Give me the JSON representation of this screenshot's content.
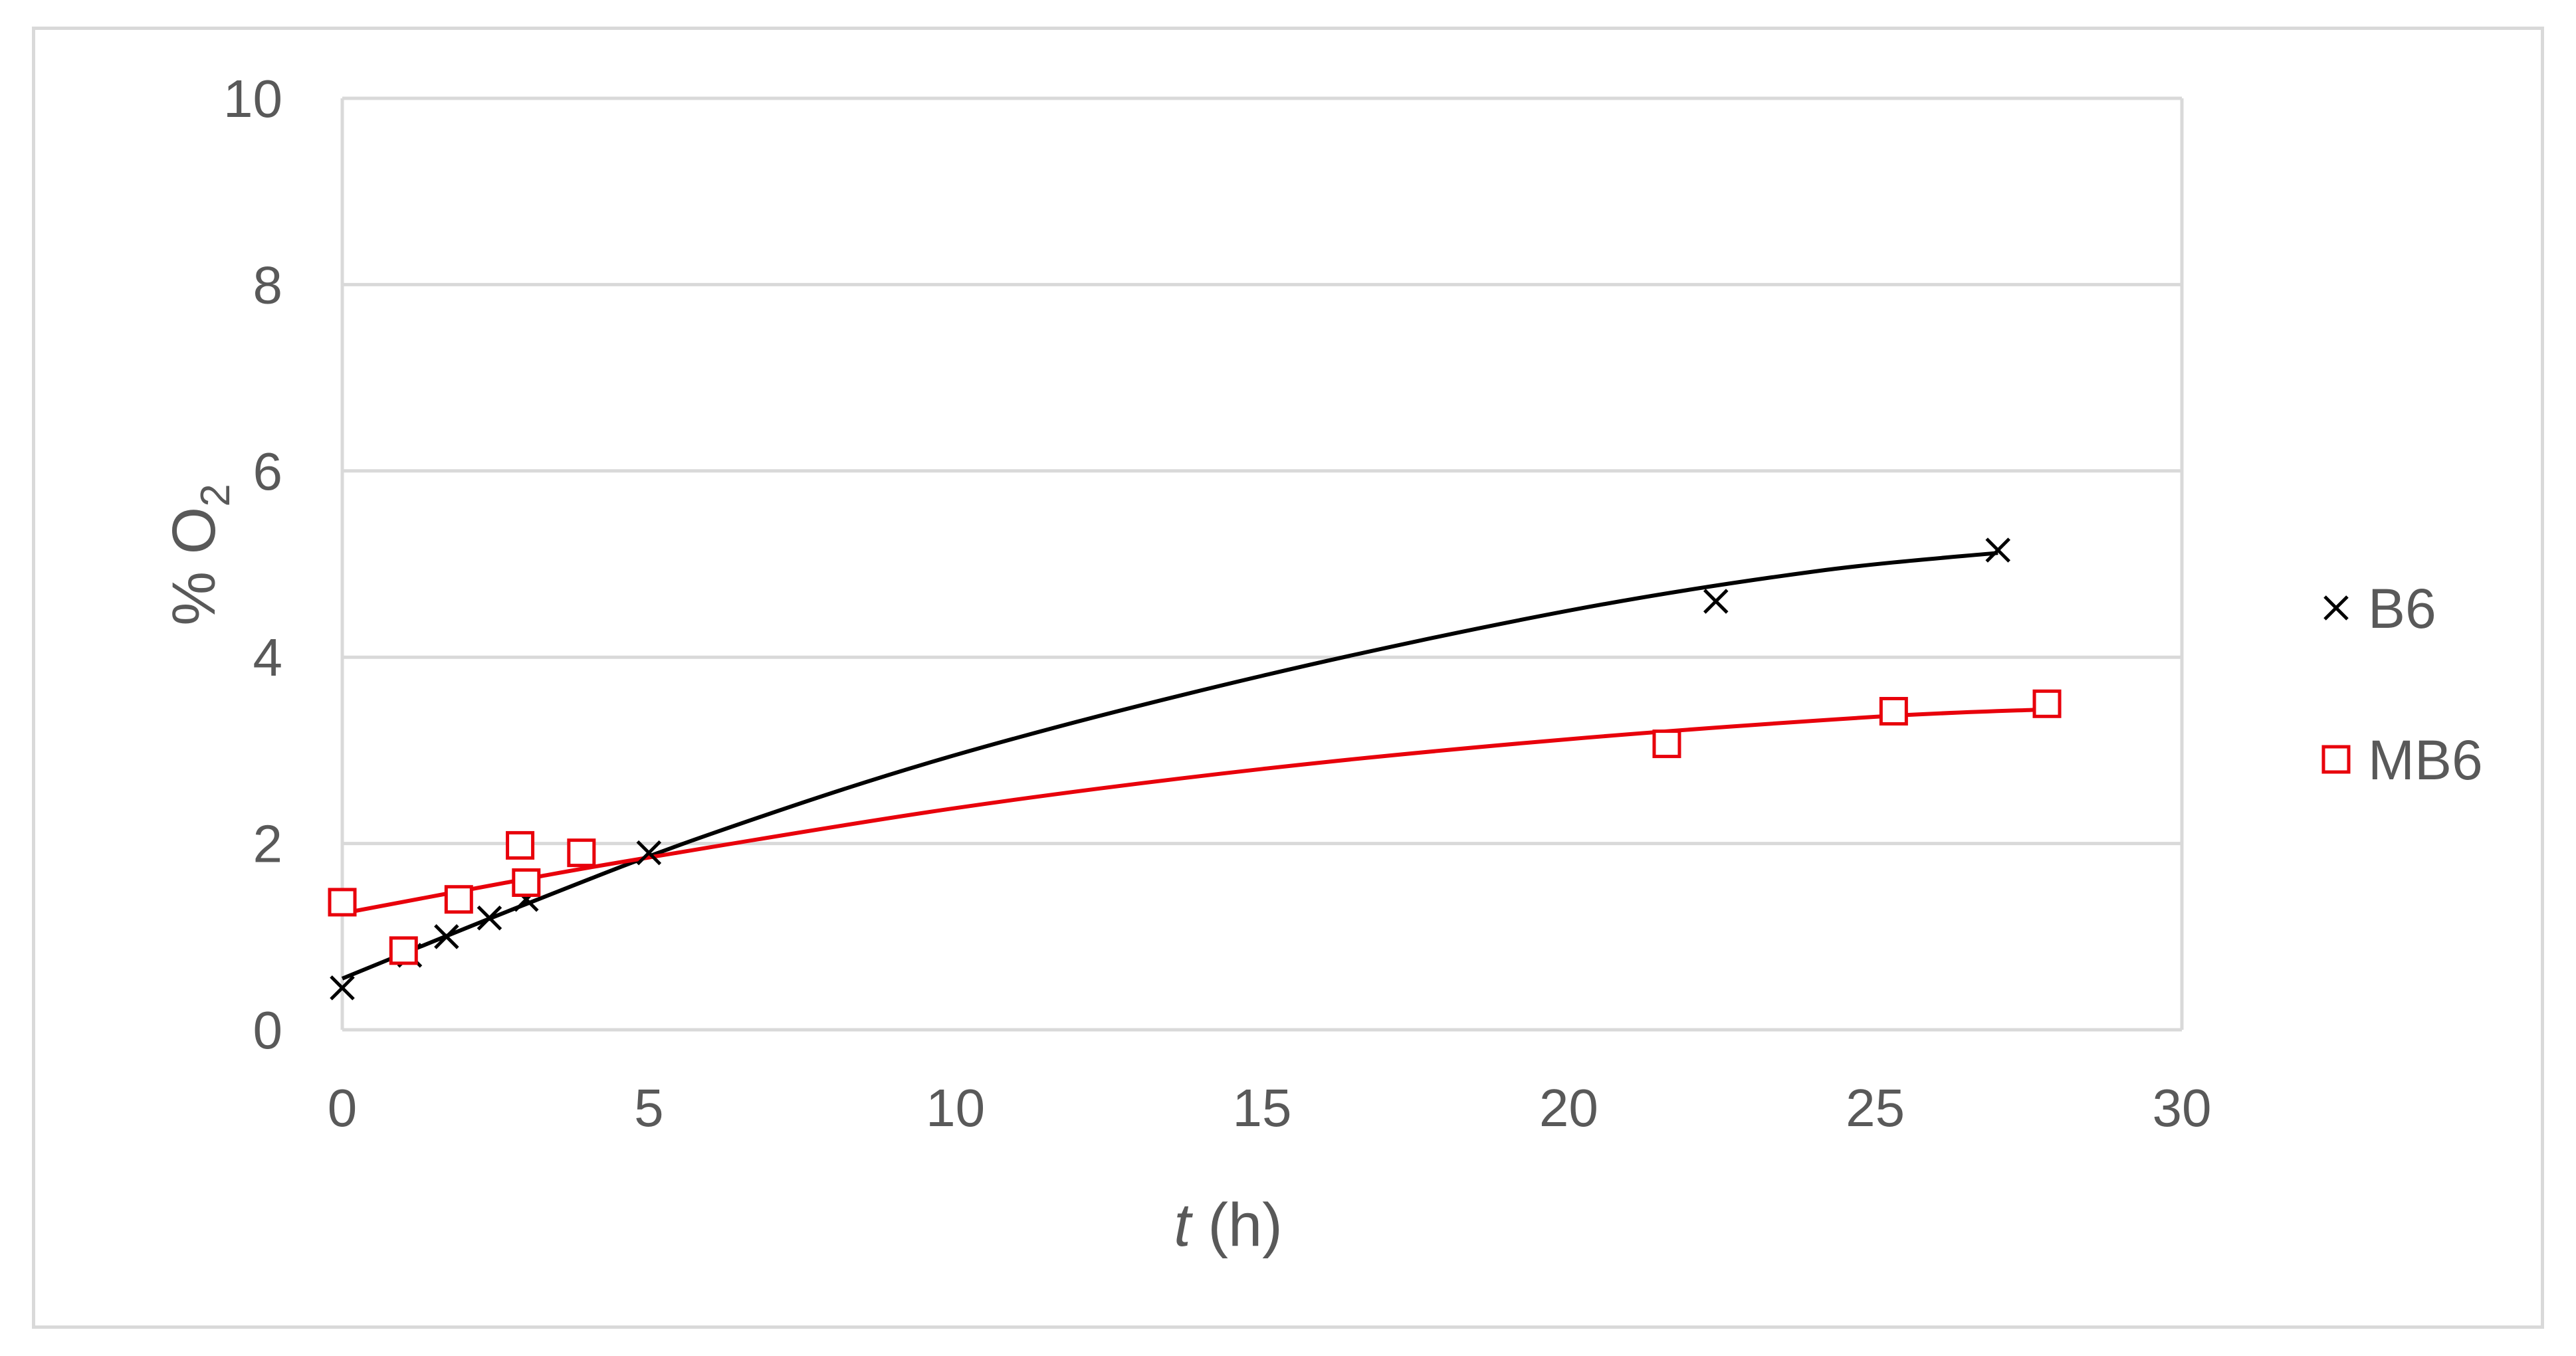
{
  "chart_data": {
    "type": "scatter",
    "title": "",
    "xlabel_italic": "t",
    "xlabel_rest": " (h)",
    "ylabel_main": "% O",
    "ylabel_sub": "2",
    "xlim": [
      0,
      30
    ],
    "ylim": [
      0,
      10
    ],
    "x_ticks": [
      0,
      5,
      10,
      15,
      20,
      25,
      30
    ],
    "y_ticks": [
      0,
      2,
      4,
      6,
      8,
      10
    ],
    "x_tick_labels": [
      "0",
      "5",
      "10",
      "15",
      "20",
      "25",
      "30"
    ],
    "y_tick_labels": [
      "0",
      "2",
      "4",
      "6",
      "8",
      "10"
    ],
    "grid": "horizontal",
    "legend_position": "right",
    "series": [
      {
        "name": "B6",
        "marker": "x",
        "color": "#000000",
        "points": [
          {
            "x": 0,
            "y": 0.45
          },
          {
            "x": 1.1,
            "y": 0.8
          },
          {
            "x": 1.7,
            "y": 1.0
          },
          {
            "x": 2.4,
            "y": 1.2
          },
          {
            "x": 3.0,
            "y": 1.4
          },
          {
            "x": 5.0,
            "y": 1.9
          },
          {
            "x": 22.4,
            "y": 4.6
          },
          {
            "x": 27.0,
            "y": 5.15
          }
        ],
        "trend": [
          {
            "x": 0,
            "y": 0.55
          },
          {
            "x": 3,
            "y": 1.35
          },
          {
            "x": 6,
            "y": 2.1
          },
          {
            "x": 10,
            "y": 2.95
          },
          {
            "x": 15,
            "y": 3.8
          },
          {
            "x": 20,
            "y": 4.5
          },
          {
            "x": 24,
            "y": 4.92
          },
          {
            "x": 27,
            "y": 5.12
          }
        ]
      },
      {
        "name": "MB6",
        "marker": "square",
        "color": "#e8000b",
        "points": [
          {
            "x": 0,
            "y": 1.37
          },
          {
            "x": 1.0,
            "y": 0.85
          },
          {
            "x": 1.9,
            "y": 1.4
          },
          {
            "x": 2.9,
            "y": 1.98
          },
          {
            "x": 3.0,
            "y": 1.58
          },
          {
            "x": 3.9,
            "y": 1.9
          },
          {
            "x": 21.6,
            "y": 3.07
          },
          {
            "x": 25.3,
            "y": 3.42
          },
          {
            "x": 27.8,
            "y": 3.5
          }
        ],
        "trend": [
          {
            "x": 0,
            "y": 1.25
          },
          {
            "x": 3,
            "y": 1.62
          },
          {
            "x": 5,
            "y": 1.85
          },
          {
            "x": 10,
            "y": 2.38
          },
          {
            "x": 15,
            "y": 2.8
          },
          {
            "x": 20,
            "y": 3.12
          },
          {
            "x": 25,
            "y": 3.36
          },
          {
            "x": 27.8,
            "y": 3.44
          }
        ]
      }
    ]
  }
}
